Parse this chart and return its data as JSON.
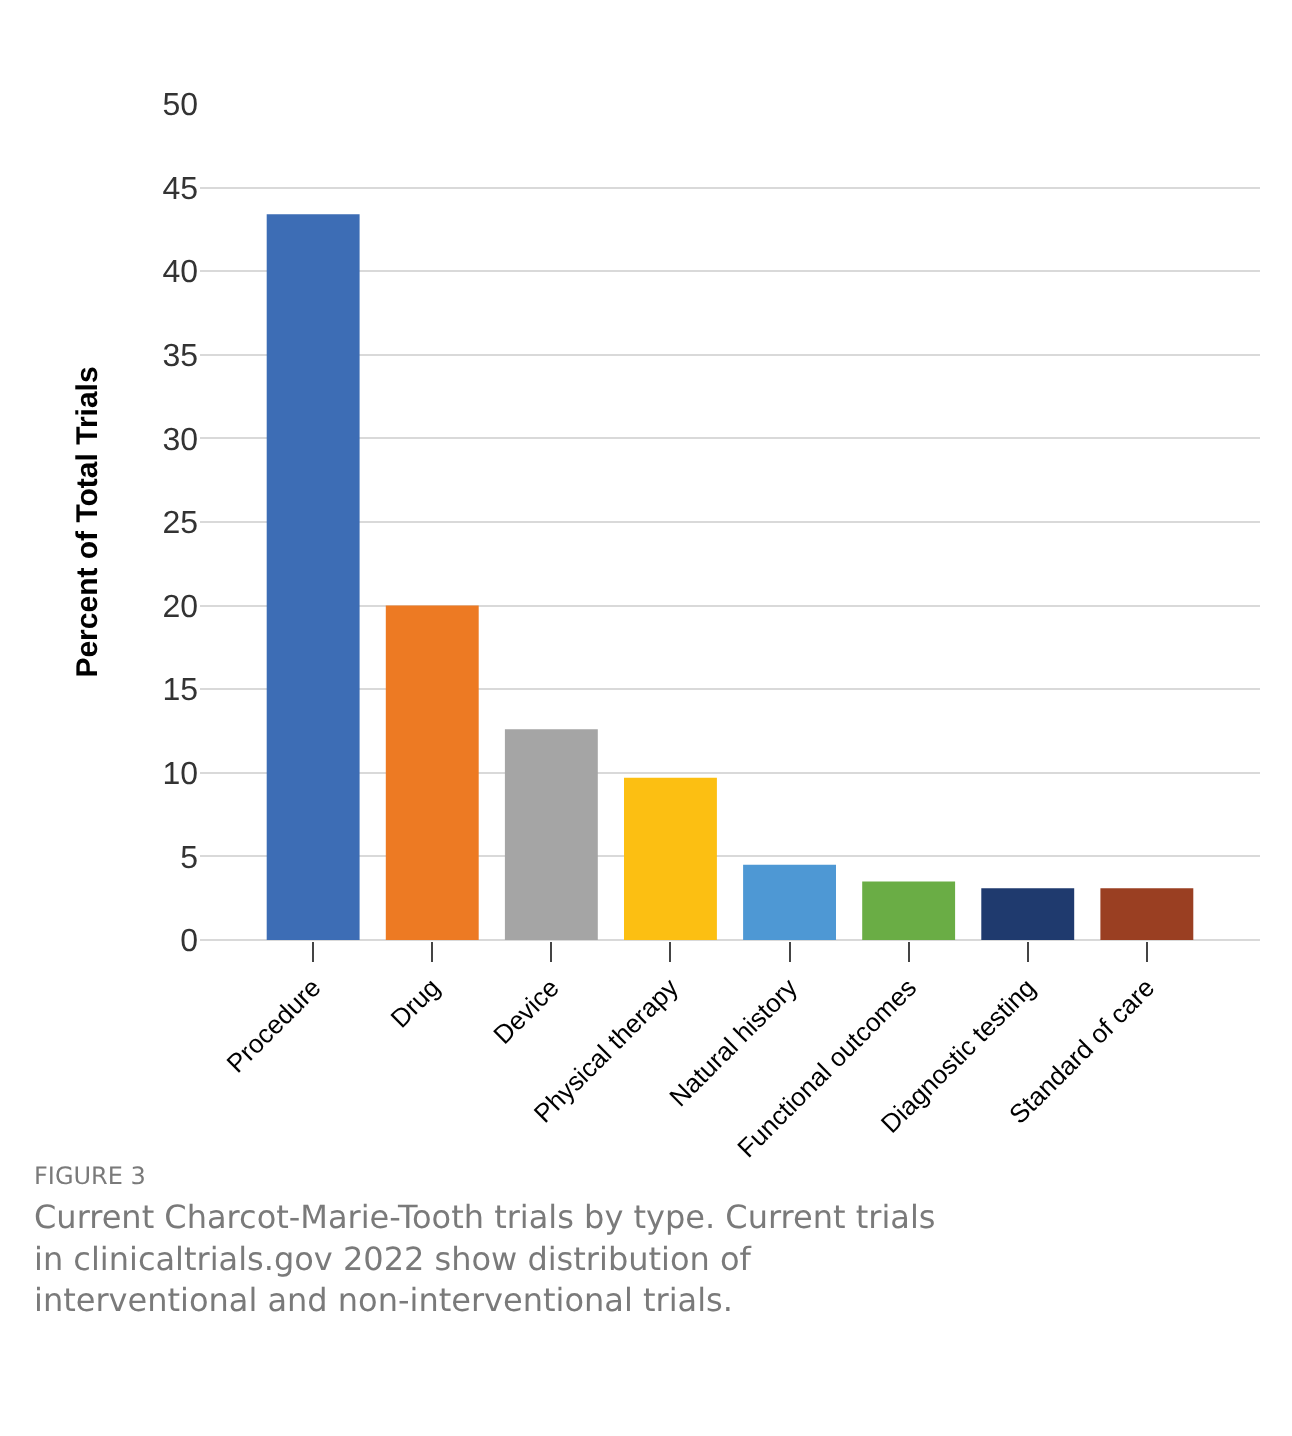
{
  "chart_data": {
    "type": "bar",
    "ylabel": "Percent of Total Trials",
    "categories": [
      "Procedure",
      "Drug",
      "Device",
      "Physical therapy",
      "Natural history",
      "Functional outcomes",
      "Diagnostic testing",
      "Standard of care"
    ],
    "values": [
      43.4,
      20,
      12.6,
      9.7,
      4.5,
      3.5,
      3.1,
      3.1
    ],
    "colors": [
      "#3d6db5",
      "#ed7a23",
      "#a5a5a5",
      "#fcbf12",
      "#4e98d4",
      "#6aad45",
      "#1f3a6e",
      "#9a3f22"
    ],
    "ylim": [
      0,
      50
    ],
    "yticks": [
      0,
      5,
      10,
      15,
      20,
      25,
      30,
      35,
      40,
      45,
      50
    ],
    "grid": "y",
    "annotations": [
      "FIGURE 3",
      "Current Charcot-Marie-Tooth trials by type. Current trials in clinicaltrials.gov 2022 show distribution of interventional and non-interventional trials."
    ]
  }
}
